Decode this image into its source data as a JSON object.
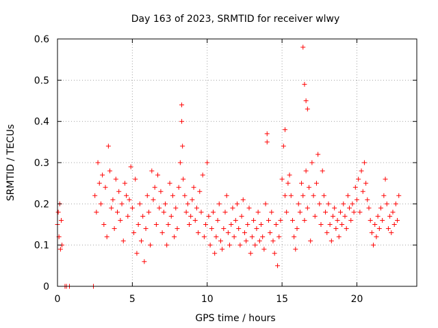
{
  "chart_data": {
    "type": "scatter",
    "title": "Day 163 of 2023, SRMTID for receiver wlwy",
    "xlabel": "GPS time / hours",
    "ylabel": "SRMTID / TECUs",
    "xlim": [
      0,
      24
    ],
    "ylim": [
      0,
      0.6
    ],
    "xticks": [
      0,
      5,
      10,
      15,
      20
    ],
    "yticks": [
      0,
      0.1,
      0.2,
      0.3,
      0.4,
      0.5,
      0.6
    ],
    "xtick_labels": [
      "0",
      "5",
      "10",
      "15",
      "20"
    ],
    "ytick_labels": [
      "0",
      "0.1",
      "0.2",
      "0.3",
      "0.4",
      "0.5",
      "0.6"
    ],
    "grid": true,
    "marker": "+",
    "color": "#ff0000",
    "series": [
      {
        "name": "SRMTID",
        "x": [
          0.0,
          0.05,
          0.1,
          0.15,
          0.2,
          0.25,
          0.3,
          0.5,
          0.6,
          0.8,
          2.4,
          2.5,
          2.6,
          2.7,
          2.8,
          2.9,
          3.0,
          3.1,
          3.2,
          3.3,
          3.4,
          3.5,
          3.6,
          3.7,
          3.8,
          3.9,
          4.0,
          4.1,
          4.2,
          4.3,
          4.4,
          4.5,
          4.6,
          4.7,
          4.8,
          4.9,
          5.0,
          5.1,
          5.2,
          5.3,
          5.4,
          5.5,
          5.6,
          5.7,
          5.8,
          5.9,
          6.0,
          6.1,
          6.2,
          6.3,
          6.4,
          6.5,
          6.6,
          6.7,
          6.8,
          6.9,
          7.0,
          7.1,
          7.2,
          7.3,
          7.4,
          7.5,
          7.6,
          7.7,
          7.8,
          7.9,
          8.0,
          8.1,
          8.2,
          8.3,
          8.4,
          8.5,
          8.6,
          8.7,
          8.8,
          8.9,
          9.0,
          9.1,
          9.2,
          9.3,
          9.4,
          9.5,
          9.6,
          9.7,
          9.8,
          9.9,
          10.0,
          10.1,
          10.2,
          10.3,
          10.4,
          10.5,
          10.6,
          10.7,
          10.8,
          10.9,
          11.0,
          11.1,
          11.2,
          11.3,
          11.4,
          11.5,
          11.6,
          11.7,
          11.8,
          11.9,
          12.0,
          12.1,
          12.2,
          12.3,
          12.4,
          12.5,
          12.6,
          12.7,
          12.8,
          12.9,
          13.0,
          13.1,
          13.2,
          13.3,
          13.4,
          13.5,
          13.6,
          13.7,
          13.8,
          13.9,
          14.0,
          14.1,
          14.2,
          14.3,
          14.4,
          14.5,
          14.6,
          14.7,
          14.8,
          14.9,
          15.0,
          15.1,
          15.2,
          15.3,
          15.4,
          15.5,
          15.6,
          15.7,
          15.8,
          15.9,
          16.0,
          16.1,
          16.2,
          16.3,
          16.4,
          16.5,
          16.6,
          16.7,
          16.8,
          16.9,
          17.0,
          17.1,
          17.2,
          17.3,
          17.4,
          17.5,
          17.6,
          17.7,
          17.8,
          17.9,
          18.0,
          18.1,
          18.2,
          18.3,
          18.4,
          18.5,
          18.6,
          18.7,
          18.8,
          18.9,
          19.0,
          19.1,
          19.2,
          19.3,
          19.4,
          19.5,
          19.6,
          19.7,
          19.8,
          19.9,
          20.0,
          20.1,
          20.2,
          20.3,
          20.4,
          20.5,
          20.6,
          20.7,
          20.8,
          20.9,
          21.0,
          21.1,
          21.2,
          21.3,
          21.4,
          21.5,
          21.6,
          21.7,
          21.8,
          21.9,
          22.0,
          22.1,
          22.2,
          22.3,
          22.4,
          22.5,
          22.6,
          22.7,
          22.8,
          8.3,
          8.35,
          16.4,
          16.5,
          16.6,
          16.7,
          15.2,
          14.0
        ],
        "y": [
          0.15,
          0.18,
          0.12,
          0.2,
          0.09,
          0.16,
          0.1,
          0.0,
          0.0,
          0.0,
          0.0,
          0.22,
          0.18,
          0.3,
          0.25,
          0.2,
          0.27,
          0.15,
          0.24,
          0.12,
          0.34,
          0.28,
          0.19,
          0.21,
          0.14,
          0.26,
          0.18,
          0.23,
          0.16,
          0.2,
          0.11,
          0.25,
          0.22,
          0.17,
          0.21,
          0.29,
          0.19,
          0.13,
          0.26,
          0.08,
          0.15,
          0.2,
          0.11,
          0.17,
          0.06,
          0.14,
          0.22,
          0.18,
          0.1,
          0.28,
          0.21,
          0.24,
          0.15,
          0.27,
          0.19,
          0.23,
          0.13,
          0.18,
          0.2,
          0.1,
          0.15,
          0.25,
          0.17,
          0.22,
          0.12,
          0.19,
          0.14,
          0.24,
          0.3,
          0.44,
          0.26,
          0.22,
          0.18,
          0.2,
          0.15,
          0.17,
          0.21,
          0.24,
          0.16,
          0.19,
          0.13,
          0.23,
          0.18,
          0.27,
          0.12,
          0.15,
          0.3,
          0.17,
          0.1,
          0.14,
          0.18,
          0.08,
          0.12,
          0.16,
          0.2,
          0.11,
          0.09,
          0.14,
          0.18,
          0.22,
          0.13,
          0.1,
          0.15,
          0.19,
          0.12,
          0.16,
          0.2,
          0.14,
          0.1,
          0.17,
          0.21,
          0.13,
          0.11,
          0.15,
          0.19,
          0.08,
          0.12,
          0.16,
          0.1,
          0.14,
          0.18,
          0.11,
          0.15,
          0.12,
          0.09,
          0.2,
          0.35,
          0.16,
          0.13,
          0.18,
          0.11,
          0.08,
          0.15,
          0.05,
          0.12,
          0.16,
          0.26,
          0.34,
          0.22,
          0.18,
          0.25,
          0.27,
          0.22,
          0.16,
          0.12,
          0.09,
          0.14,
          0.2,
          0.18,
          0.25,
          0.22,
          0.16,
          0.28,
          0.19,
          0.24,
          0.11,
          0.3,
          0.22,
          0.17,
          0.25,
          0.32,
          0.2,
          0.15,
          0.28,
          0.22,
          0.18,
          0.13,
          0.2,
          0.15,
          0.11,
          0.17,
          0.19,
          0.14,
          0.16,
          0.12,
          0.18,
          0.15,
          0.2,
          0.17,
          0.14,
          0.22,
          0.19,
          0.16,
          0.2,
          0.18,
          0.24,
          0.21,
          0.26,
          0.18,
          0.28,
          0.23,
          0.3,
          0.25,
          0.21,
          0.19,
          0.16,
          0.13,
          0.1,
          0.15,
          0.12,
          0.17,
          0.14,
          0.19,
          0.16,
          0.22,
          0.26,
          0.2,
          0.14,
          0.17,
          0.13,
          0.18,
          0.15,
          0.2,
          0.16,
          0.22,
          0.4,
          0.34,
          0.58,
          0.49,
          0.45,
          0.43,
          0.38,
          0.37
        ]
      }
    ]
  }
}
